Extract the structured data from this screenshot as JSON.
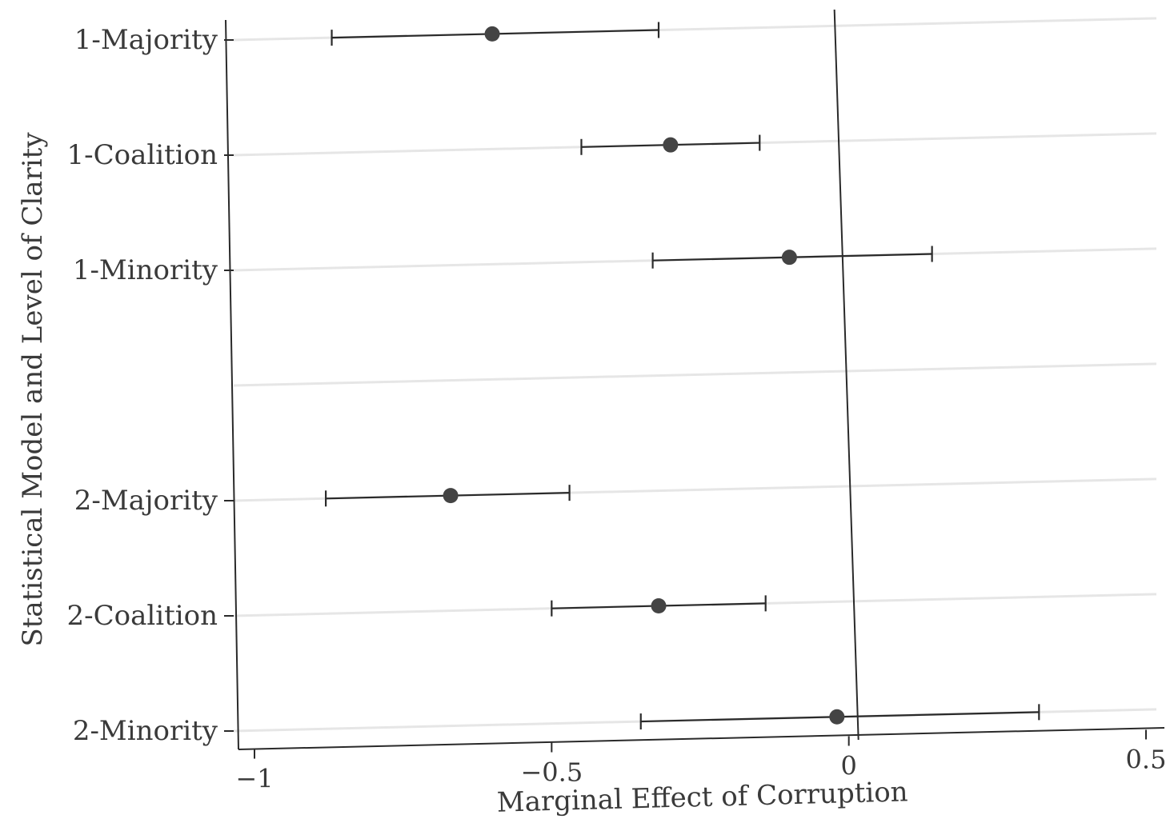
{
  "chart_data": {
    "type": "scatter",
    "subtype": "coefficient-plot-with-confidence-intervals",
    "xlabel": "Marginal Effect of Corruption",
    "ylabel": "Statistical Model and Level of Clarity",
    "xlim": [
      -1,
      0.5
    ],
    "xticks": [
      -1,
      -0.5,
      0,
      0.5
    ],
    "xtick_labels": [
      "−1",
      "−0.5",
      "0",
      "0.5"
    ],
    "grid": true,
    "reference_line_x": 0,
    "categories": [
      "1-Majority",
      "1-Coalition",
      "1-Minority",
      "",
      "2-Majority",
      "2-Coalition",
      "2-Minority"
    ],
    "points": [
      {
        "label": "1-Majority",
        "estimate": -0.6,
        "lower": -0.87,
        "upper": -0.32
      },
      {
        "label": "1-Coalition",
        "estimate": -0.3,
        "lower": -0.45,
        "upper": -0.15
      },
      {
        "label": "1-Minority",
        "estimate": -0.1,
        "lower": -0.33,
        "upper": 0.14
      },
      {
        "label": "2-Majority",
        "estimate": -0.67,
        "lower": -0.88,
        "upper": -0.47
      },
      {
        "label": "2-Coalition",
        "estimate": -0.32,
        "lower": -0.5,
        "upper": -0.14
      },
      {
        "label": "2-Minority",
        "estimate": -0.02,
        "lower": -0.35,
        "upper": 0.32
      }
    ]
  },
  "colors": {
    "point": "#444444",
    "line": "#2a2a2a",
    "grid": "#e6e6e6",
    "text": "#3a3a3a"
  }
}
